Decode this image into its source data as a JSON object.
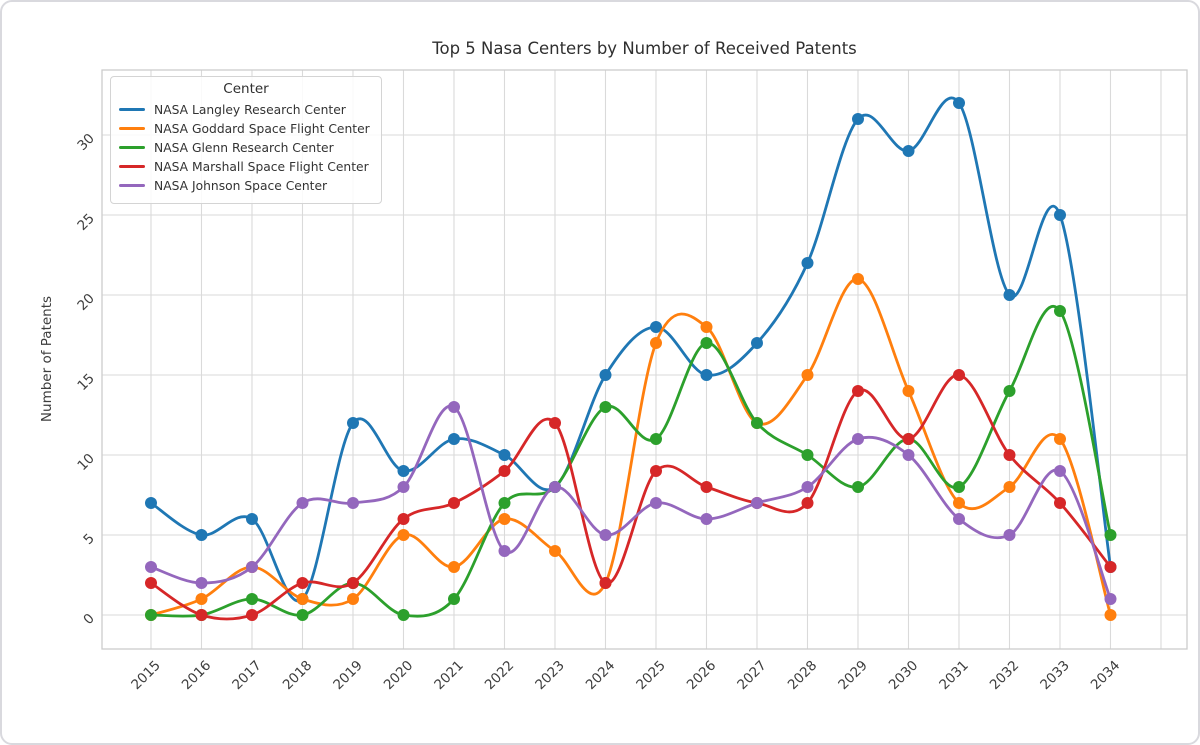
{
  "chart_data": {
    "type": "line",
    "title": "Top 5 Nasa Centers by Number of Received Patents",
    "xlabel": "",
    "ylabel": "Number of Patents",
    "legend_title": "Center",
    "legend_position": "upper left",
    "grid": true,
    "smooth_splines": true,
    "background": "#ffffff",
    "x": [
      2015,
      2016,
      2017,
      2018,
      2019,
      2020,
      2021,
      2022,
      2023,
      2024,
      2025,
      2026,
      2027,
      2028,
      2029,
      2030,
      2031,
      2032,
      2033,
      2034
    ],
    "yticks": [
      0,
      5,
      10,
      15,
      20,
      25,
      30
    ],
    "ylim": [
      -2,
      34
    ],
    "series": [
      {
        "name": "NASA Langley Research Center",
        "color": "#1f77b4",
        "values": [
          7,
          5,
          6,
          1,
          12,
          9,
          11,
          10,
          8,
          15,
          18,
          15,
          17,
          22,
          31,
          29,
          32,
          20,
          25,
          3
        ]
      },
      {
        "name": "NASA Goddard Space Flight Center",
        "color": "#ff7f0e",
        "values": [
          0,
          1,
          3,
          1,
          1,
          5,
          3,
          6,
          4,
          2,
          17,
          18,
          12,
          15,
          21,
          14,
          7,
          8,
          11,
          0
        ]
      },
      {
        "name": "NASA Glenn Research Center",
        "color": "#2ca02c",
        "values": [
          0,
          0,
          1,
          0,
          2,
          0,
          1,
          7,
          8,
          13,
          11,
          17,
          12,
          10,
          8,
          11,
          8,
          14,
          19,
          5
        ]
      },
      {
        "name": "NASA Marshall Space Flight Center",
        "color": "#d62728",
        "values": [
          2,
          0,
          0,
          2,
          2,
          6,
          7,
          9,
          12,
          2,
          9,
          8,
          7,
          7,
          14,
          11,
          15,
          10,
          7,
          3
        ]
      },
      {
        "name": "NASA Johnson Space Center",
        "color": "#9467bd",
        "values": [
          3,
          2,
          3,
          7,
          7,
          8,
          13,
          4,
          8,
          5,
          7,
          6,
          7,
          8,
          11,
          10,
          6,
          5,
          9,
          1
        ]
      }
    ]
  }
}
